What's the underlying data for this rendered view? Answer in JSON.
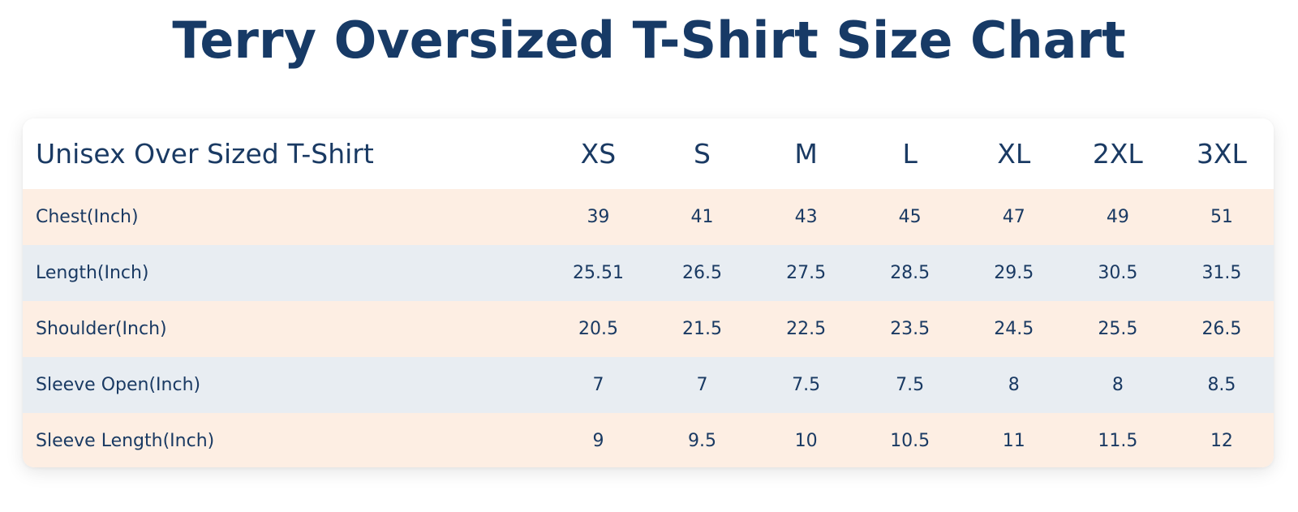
{
  "chart_data": {
    "type": "table",
    "title": "Terry Oversized T-Shirt Size Chart",
    "header_label": "Unisex Over Sized T-Shirt",
    "columns": [
      "XS",
      "S",
      "M",
      "L",
      "XL",
      "2XL",
      "3XL"
    ],
    "rows": [
      {
        "label": "Chest(Inch)",
        "values": [
          "39",
          "41",
          "43",
          "45",
          "47",
          "49",
          "51"
        ]
      },
      {
        "label": "Length(Inch)",
        "values": [
          "25.51",
          "26.5",
          "27.5",
          "28.5",
          "29.5",
          "30.5",
          "31.5"
        ]
      },
      {
        "label": "Shoulder(Inch)",
        "values": [
          "20.5",
          "21.5",
          "22.5",
          "23.5",
          "24.5",
          "25.5",
          "26.5"
        ]
      },
      {
        "label": "Sleeve Open(Inch)",
        "values": [
          "7",
          "7",
          "7.5",
          "7.5",
          "8",
          "8",
          "8.5"
        ]
      },
      {
        "label": "Sleeve Length(Inch)",
        "values": [
          "9",
          "9.5",
          "10",
          "10.5",
          "11",
          "11.5",
          "12"
        ]
      }
    ]
  },
  "colors": {
    "text": "#1a3a63",
    "row_alt_peach": "#fdeee3",
    "row_alt_gray": "#e8edf2"
  }
}
